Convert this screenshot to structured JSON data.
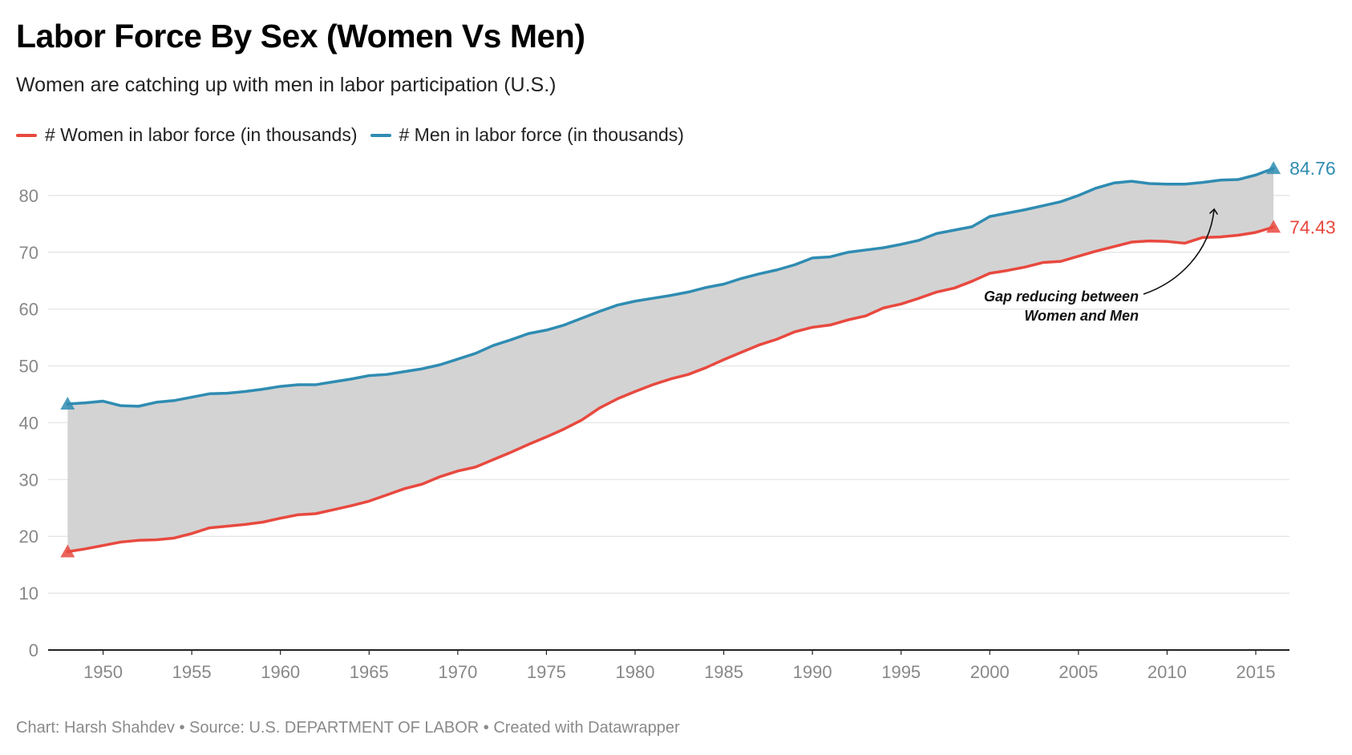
{
  "title": "Labor Force By Sex (Women Vs Men)",
  "subtitle": "Women are catching up with men in labor participation (U.S.)",
  "footer": "Chart: Harsh Shahdev • Source: U.S. DEPARTMENT OF LABOR • Created with Datawrapper",
  "colors": {
    "women": "#e8493f",
    "men": "#2f8cb2",
    "gap_fill": "#d3d3d3",
    "grid": "#e2e2e2",
    "axis": "#222222"
  },
  "annotation": {
    "line1": "Gap reducing between",
    "line2": "Women and Men"
  },
  "chart_data": {
    "type": "area",
    "title": "Labor Force By Sex (Women Vs Men)",
    "subtitle": "Women are catching up with men in labor participation (U.S.)",
    "xlabel": "",
    "ylabel": "",
    "xlim": [
      1946.9,
      2016.9
    ],
    "ylim": [
      0,
      90
    ],
    "grid": true,
    "legend_position": "top-left",
    "x_ticks": [
      1950,
      1955,
      1960,
      1965,
      1970,
      1975,
      1980,
      1985,
      1990,
      1995,
      2000,
      2005,
      2010,
      2015
    ],
    "y_ticks": [
      0,
      10,
      20,
      30,
      40,
      50,
      60,
      70,
      80
    ],
    "x": [
      1948,
      1949,
      1950,
      1951,
      1952,
      1953,
      1954,
      1955,
      1956,
      1957,
      1958,
      1959,
      1960,
      1961,
      1962,
      1963,
      1964,
      1965,
      1966,
      1967,
      1968,
      1969,
      1970,
      1971,
      1972,
      1973,
      1974,
      1975,
      1976,
      1977,
      1978,
      1979,
      1980,
      1981,
      1982,
      1983,
      1984,
      1985,
      1986,
      1987,
      1988,
      1989,
      1990,
      1991,
      1992,
      1993,
      1994,
      1995,
      1996,
      1997,
      1998,
      1999,
      2000,
      2001,
      2002,
      2003,
      2004,
      2005,
      2006,
      2007,
      2008,
      2009,
      2010,
      2011,
      2012,
      2013,
      2014,
      2015,
      2016
    ],
    "series": [
      {
        "name": "# Women in labor force (in thousands)",
        "color": "#e8493f",
        "end_label": "74.43",
        "values": [
          17.3,
          17.8,
          18.4,
          19.0,
          19.3,
          19.4,
          19.7,
          20.5,
          21.5,
          21.8,
          22.1,
          22.5,
          23.2,
          23.8,
          24.0,
          24.7,
          25.4,
          26.2,
          27.3,
          28.4,
          29.2,
          30.5,
          31.5,
          32.2,
          33.5,
          34.8,
          36.2,
          37.5,
          38.9,
          40.5,
          42.6,
          44.2,
          45.5,
          46.7,
          47.7,
          48.5,
          49.7,
          51.1,
          52.4,
          53.7,
          54.7,
          56.0,
          56.8,
          57.2,
          58.1,
          58.8,
          60.2,
          60.9,
          61.9,
          63.0,
          63.7,
          64.9,
          66.3,
          66.8,
          67.4,
          68.2,
          68.4,
          69.3,
          70.2,
          71.0,
          71.8,
          72.0,
          71.9,
          71.6,
          72.6,
          72.7,
          73.0,
          73.5,
          74.43
        ]
      },
      {
        "name": "# Men in labor force (in thousands)",
        "color": "#2f8cb2",
        "end_label": "84.76",
        "values": [
          43.3,
          43.5,
          43.8,
          43.0,
          42.9,
          43.6,
          43.9,
          44.5,
          45.1,
          45.2,
          45.5,
          45.9,
          46.4,
          46.7,
          46.7,
          47.2,
          47.7,
          48.3,
          48.5,
          49.0,
          49.5,
          50.2,
          51.2,
          52.2,
          53.6,
          54.6,
          55.7,
          56.3,
          57.2,
          58.4,
          59.6,
          60.7,
          61.4,
          61.9,
          62.4,
          63.0,
          63.8,
          64.4,
          65.4,
          66.2,
          66.9,
          67.8,
          69.0,
          69.2,
          70.0,
          70.4,
          70.8,
          71.4,
          72.1,
          73.3,
          73.9,
          74.5,
          76.3,
          76.9,
          77.5,
          78.2,
          78.9,
          80.0,
          81.3,
          82.2,
          82.5,
          82.1,
          82.0,
          82.0,
          82.3,
          82.7,
          82.8,
          83.6,
          84.76
        ]
      }
    ]
  }
}
